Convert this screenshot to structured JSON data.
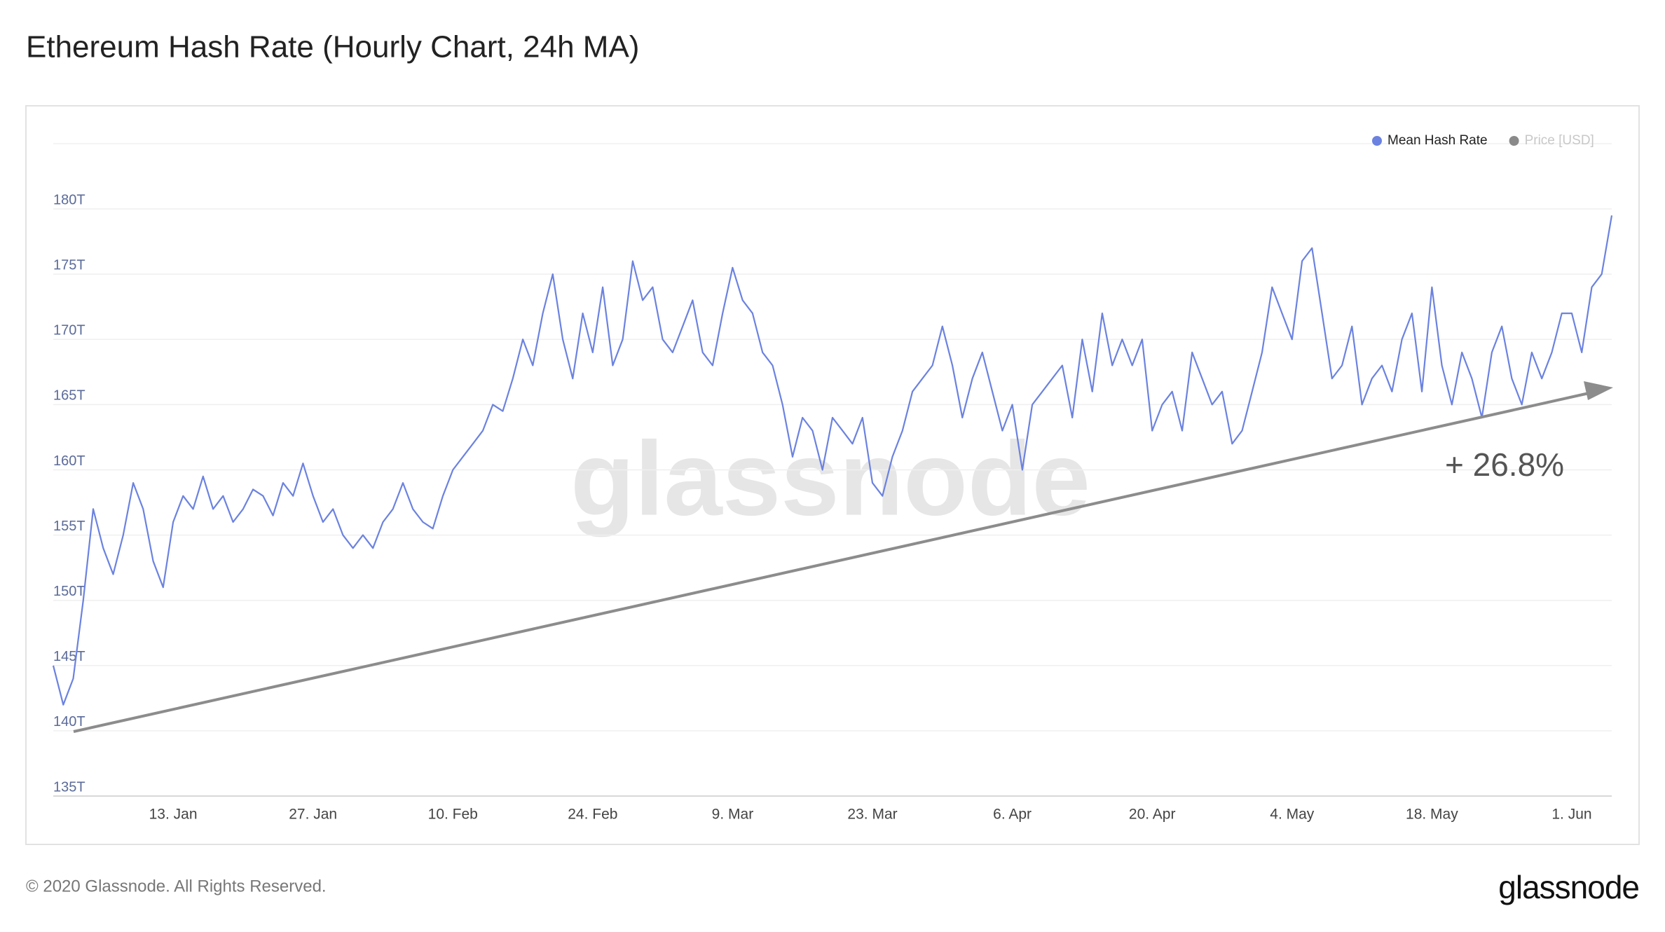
{
  "page_title": "Ethereum Hash Rate (Hourly Chart, 24h MA)",
  "footer": {
    "copyright": "© 2020 Glassnode. All Rights Reserved.",
    "logo": "glassnode"
  },
  "watermark": "glassnode",
  "chart_data": {
    "type": "line",
    "categories": [
      null,
      null,
      null,
      null,
      null,
      null,
      null,
      null,
      null,
      null,
      null,
      null,
      "13. Jan",
      null,
      null,
      null,
      null,
      null,
      null,
      null,
      null,
      null,
      null,
      null,
      null,
      null,
      "27. Jan",
      null,
      null,
      null,
      null,
      null,
      null,
      null,
      null,
      null,
      null,
      null,
      null,
      null,
      "10. Feb",
      null,
      null,
      null,
      null,
      null,
      null,
      null,
      null,
      null,
      null,
      null,
      null,
      null,
      "24. Feb",
      null,
      null,
      null,
      null,
      null,
      null,
      null,
      null,
      null,
      null,
      null,
      null,
      null,
      "9. Mar",
      null,
      null,
      null,
      null,
      null,
      null,
      null,
      null,
      null,
      null,
      null,
      null,
      null,
      "23. Mar",
      null,
      null,
      null,
      null,
      null,
      null,
      null,
      null,
      null,
      null,
      null,
      null,
      null,
      "6. Apr",
      null,
      null,
      null,
      null,
      null,
      null,
      null,
      null,
      null,
      null,
      null,
      null,
      null,
      "20. Apr",
      null,
      null,
      null,
      null,
      null,
      null,
      null,
      null,
      null,
      null,
      null,
      null,
      null,
      "4. May",
      null,
      null,
      null,
      null,
      null,
      null,
      null,
      null,
      null,
      null,
      null,
      null,
      null,
      "18. May",
      null,
      null,
      null,
      null,
      null,
      null,
      null,
      null,
      null,
      null,
      null,
      null,
      null,
      "1. Jun",
      null,
      null,
      null,
      null
    ],
    "series": [
      {
        "name": "Mean Hash Rate",
        "color": "#6b82e0",
        "values": [
          145,
          142,
          144,
          150,
          157,
          154,
          152,
          155,
          159,
          157,
          153,
          151,
          156,
          158,
          157,
          159.5,
          157,
          158,
          156,
          157,
          158.5,
          158,
          156.5,
          159,
          158,
          160.5,
          158,
          156,
          157,
          155,
          154,
          155,
          154,
          156,
          157,
          159,
          157,
          156,
          155.5,
          158,
          160,
          161,
          162,
          163,
          165,
          164.5,
          167,
          170,
          168,
          172,
          175,
          170,
          167,
          172,
          169,
          174,
          168,
          170,
          176,
          173,
          174,
          170,
          169,
          171,
          173,
          169,
          168,
          172,
          175.5,
          173,
          172,
          169,
          168,
          165,
          161,
          164,
          163,
          160,
          164,
          163,
          162,
          164,
          159,
          158,
          161,
          163,
          166,
          167,
          168,
          171,
          168,
          164,
          167,
          169,
          166,
          163,
          165,
          160,
          165,
          166,
          167,
          168,
          164,
          170,
          166,
          172,
          168,
          170,
          168,
          170,
          163,
          165,
          166,
          163,
          169,
          167,
          165,
          166,
          162,
          163,
          166,
          169,
          174,
          172,
          170,
          176,
          177,
          172,
          167,
          168,
          171,
          165,
          167,
          168,
          166,
          170,
          172,
          166,
          174,
          168,
          165,
          169,
          167,
          164,
          169,
          171,
          167,
          165,
          169,
          167,
          169,
          172,
          172,
          169,
          174,
          175,
          179.5
        ]
      }
    ],
    "legend": [
      {
        "name": "Mean Hash Rate",
        "color": "#6b82e0"
      },
      {
        "name": "Price [USD]",
        "color": "#8a8a8a"
      }
    ],
    "annotation": "+ 26.8%",
    "ylim": [
      135,
      185
    ],
    "yticks": [
      {
        "value": 135,
        "label": "135T"
      },
      {
        "value": 140,
        "label": "140T"
      },
      {
        "value": 145,
        "label": "145T"
      },
      {
        "value": 150,
        "label": "150T"
      },
      {
        "value": 155,
        "label": "155T"
      },
      {
        "value": 160,
        "label": "160T"
      },
      {
        "value": 165,
        "label": "165T"
      },
      {
        "value": 170,
        "label": "170T"
      },
      {
        "value": 175,
        "label": "175T"
      },
      {
        "value": 180,
        "label": "180T"
      }
    ],
    "grid": true
  }
}
